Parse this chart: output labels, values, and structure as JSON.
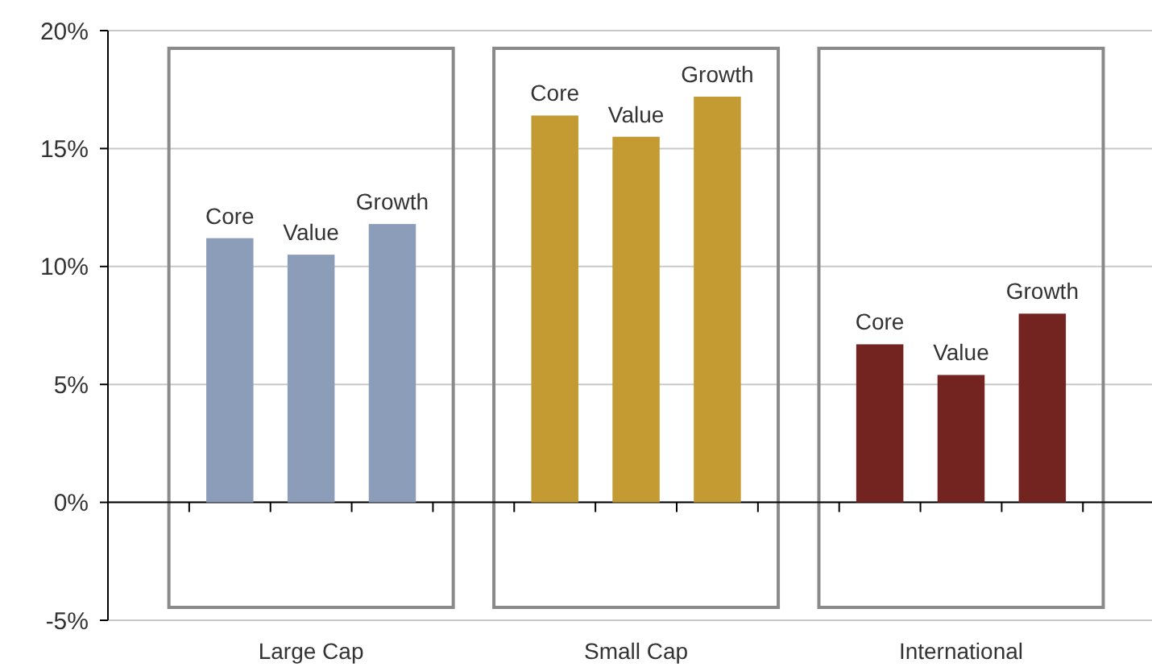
{
  "chart_data": {
    "type": "bar",
    "categories": [
      "Large Cap",
      "Small Cap",
      "International"
    ],
    "series": [
      {
        "name": "Core",
        "colors": [
          "#8c9dba",
          "#c49a33",
          "#732320"
        ],
        "values": [
          11.2,
          16.4,
          6.7
        ]
      },
      {
        "name": "Value",
        "colors": [
          "#8c9dba",
          "#c49a33",
          "#732320"
        ],
        "values": [
          10.5,
          15.5,
          5.4
        ]
      },
      {
        "name": "Growth",
        "colors": [
          "#8c9dba",
          "#c49a33",
          "#732320"
        ],
        "values": [
          11.8,
          17.2,
          8.0
        ]
      }
    ],
    "ylim": [
      -5,
      20
    ],
    "yticks": [
      {
        "value": -5,
        "label": "-5%"
      },
      {
        "value": 0,
        "label": "0%"
      },
      {
        "value": 5,
        "label": "5%"
      },
      {
        "value": 10,
        "label": "10%"
      },
      {
        "value": 15,
        "label": "15%"
      },
      {
        "value": 20,
        "label": "20%"
      }
    ],
    "grid": "y"
  }
}
